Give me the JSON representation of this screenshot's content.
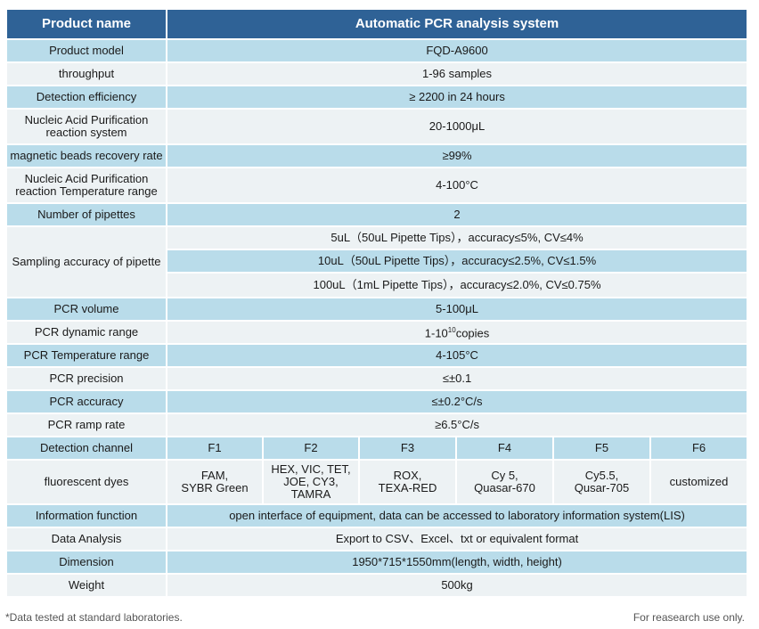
{
  "header": {
    "col1": "Product name",
    "col2": "Automatic PCR analysis system"
  },
  "rows": {
    "model": {
      "label": "Product model",
      "value": "FQD-A9600"
    },
    "throughput": {
      "label": "throughput",
      "value": "1-96 samples"
    },
    "efficiency": {
      "label": "Detection efficiency",
      "value": "≥ 2200 in 24 hours"
    },
    "purif_system": {
      "label_l1": "Nucleic Acid Purification",
      "label_l2": "reaction system",
      "value": "20-1000μL"
    },
    "beads": {
      "label": "magnetic beads recovery rate",
      "value": "≥99%"
    },
    "purif_temp": {
      "label_l1": "Nucleic Acid Purification",
      "label_l2": "reaction Temperature range",
      "value": "4-100°C"
    },
    "pipettes": {
      "label": "Number of pipettes",
      "value": "2"
    },
    "sampling": {
      "label": "Sampling accuracy of pipette",
      "values": [
        "5uL（50uL Pipette Tips），accuracy≤5%, CV≤4%",
        "10uL（50uL Pipette Tips），accuracy≤2.5%, CV≤1.5%",
        "100uL（1mL Pipette Tips），accuracy≤2.0%, CV≤0.75%"
      ]
    },
    "pcr_volume": {
      "label": "PCR volume",
      "value": "5-100μL"
    },
    "dyn_range": {
      "label": "PCR dynamic range",
      "value_pre": "1-10",
      "value_sup": "10",
      "value_post": "copies"
    },
    "pcr_temp": {
      "label": "PCR Temperature range",
      "value": "4-105°C"
    },
    "precision": {
      "label": "PCR precision",
      "value": "≤±0.1"
    },
    "accuracy": {
      "label": "PCR accuracy",
      "value": "≤±0.2°C/s"
    },
    "ramp": {
      "label": "PCR ramp rate",
      "value": "≥6.5°C/s"
    },
    "channels": {
      "label": "Detection channel",
      "items": [
        "F1",
        "F2",
        "F3",
        "F4",
        "F5",
        "F6"
      ]
    },
    "dyes": {
      "label": "fluorescent dyes",
      "items": [
        {
          "l1": "FAM,",
          "l2": "SYBR Green"
        },
        {
          "l1": "HEX, VIC, TET,",
          "l2": "JOE, CY3, TAMRA"
        },
        {
          "l1": "ROX,",
          "l2": "TEXA-RED"
        },
        {
          "l1": "Cy 5,",
          "l2": "Quasar-670"
        },
        {
          "l1": "Cy5.5,",
          "l2": "Qusar-705"
        },
        {
          "l1": "customized",
          "l2": ""
        }
      ]
    },
    "info": {
      "label": "Information function",
      "value": "open interface of equipment, data can be accessed to laboratory information system(LIS)"
    },
    "analysis": {
      "label": "Data Analysis",
      "value": "Export to CSV、Excel、txt or equivalent format"
    },
    "dimension": {
      "label": "Dimension",
      "value": "1950*715*1550mm(length, width, height)"
    },
    "weight": {
      "label": "Weight",
      "value": "500kg"
    }
  },
  "footer": {
    "left": "*Data tested at standard laboratories.",
    "right": "For reasearch use only."
  }
}
